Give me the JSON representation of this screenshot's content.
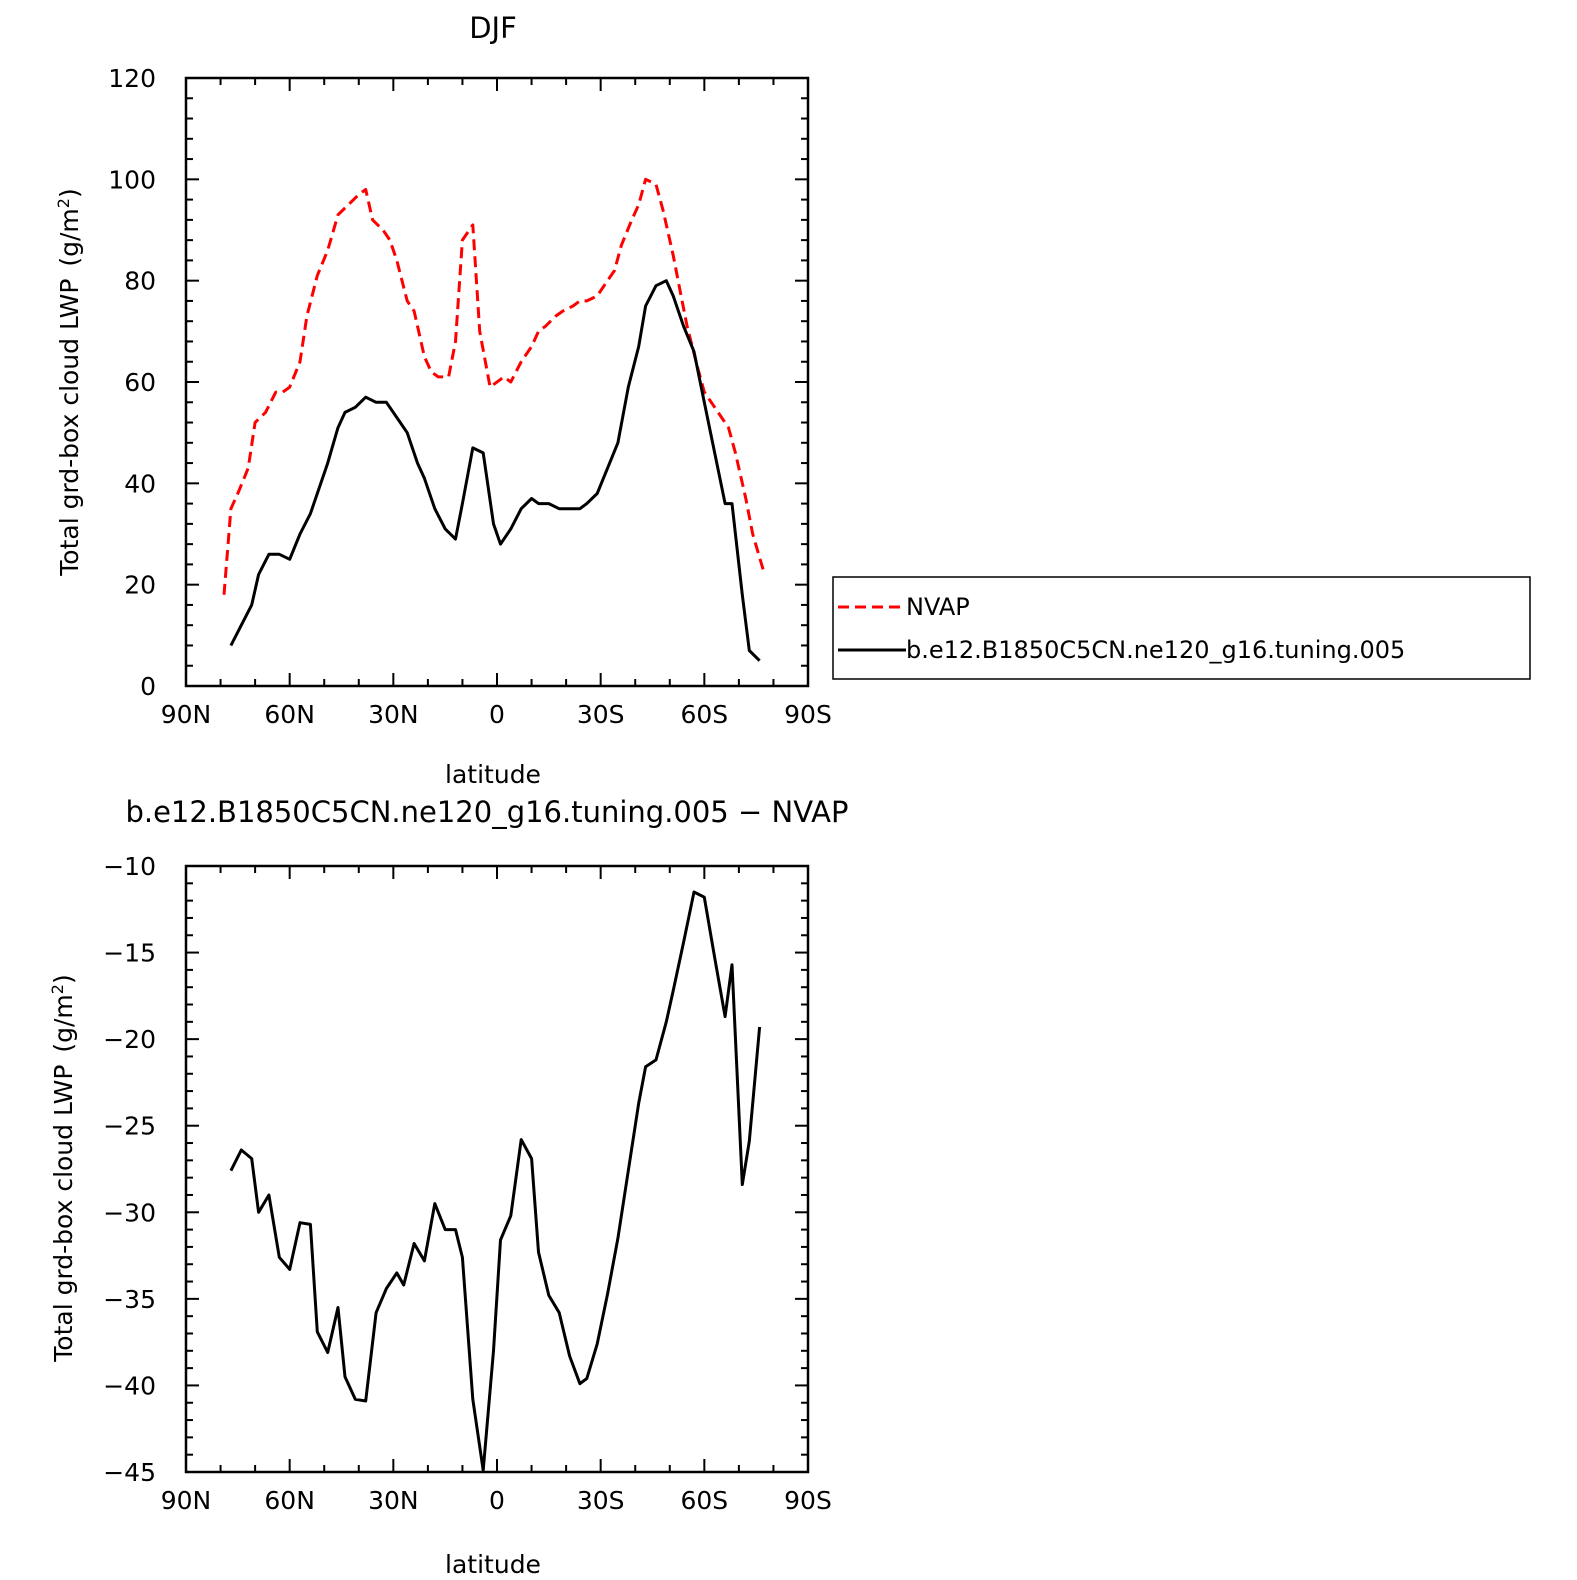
{
  "chart_data": [
    {
      "type": "line",
      "title": "DJF",
      "xlabel": "latitude",
      "ylabel": "Total grd-box cloud LWP",
      "ylabel_unit": "(g/m",
      "ylabel_unit_sup": "2",
      "ylabel_unit_close": ")",
      "xlim": [
        -90,
        90
      ],
      "ylim": [
        0,
        120
      ],
      "x_ticks": [
        -90,
        -60,
        -30,
        0,
        30,
        60,
        90
      ],
      "x_tick_labels": [
        "90N",
        "60N",
        "30N",
        "0",
        "30S",
        "60S",
        "90S"
      ],
      "y_ticks": [
        0,
        20,
        40,
        60,
        80,
        100,
        120
      ],
      "y_tick_labels": [
        "0",
        "20",
        "40",
        "60",
        "80",
        "100",
        "120"
      ],
      "grid": false,
      "legend_position": "right",
      "series": [
        {
          "name": "NVAP",
          "color": "#ff0000",
          "dash": "dashed",
          "x": [
            -79,
            -77,
            -75,
            -72,
            -70,
            -67,
            -64,
            -62,
            -60,
            -57,
            -55,
            -52,
            -49,
            -46,
            -43,
            -40,
            -38,
            -36,
            -33,
            -31,
            -29,
            -26,
            -24,
            -21,
            -19,
            -17,
            -14,
            -12,
            -10,
            -7,
            -5,
            -2,
            2,
            4,
            7,
            10,
            12,
            14,
            17,
            19,
            22,
            24,
            26,
            29,
            31,
            34,
            36,
            39,
            41,
            43,
            46,
            48,
            51,
            53,
            55,
            58,
            60,
            63,
            65,
            67,
            69,
            72,
            74,
            77
          ],
          "y": [
            18,
            35,
            38,
            43,
            52,
            54,
            58,
            58,
            59,
            64,
            73,
            81,
            86,
            93,
            95,
            97,
            98,
            92,
            90,
            88,
            84,
            76,
            74,
            65,
            62,
            61,
            61,
            68,
            88,
            91,
            70,
            59,
            61,
            60,
            64,
            67,
            70,
            71,
            73,
            74,
            75,
            76,
            76,
            77,
            79,
            82,
            87,
            92,
            95,
            100,
            99,
            94,
            85,
            78,
            71,
            63,
            58,
            55,
            53,
            51,
            46,
            37,
            30,
            23
          ]
        },
        {
          "name": "b.e12.B1850C5CN.ne120_g16.tuning.005",
          "color": "#000000",
          "dash": "solid",
          "x": [
            -77,
            -74,
            -71,
            -69,
            -66,
            -63,
            -60,
            -57,
            -54,
            -52,
            -49,
            -46,
            -44,
            -41,
            -38,
            -35,
            -32,
            -29,
            -26,
            -23,
            -21,
            -18,
            -15,
            -12,
            -10,
            -7,
            -4,
            -1,
            1,
            4,
            7,
            10,
            12,
            15,
            18,
            21,
            24,
            26,
            29,
            32,
            35,
            38,
            41,
            43,
            46,
            49,
            51,
            54,
            57,
            60,
            63,
            66,
            68,
            71,
            73,
            76
          ],
          "y": [
            8,
            12,
            16,
            22,
            26,
            26,
            25,
            30,
            34,
            38,
            44,
            51,
            54,
            55,
            57,
            56,
            56,
            53,
            50,
            44,
            41,
            35,
            31,
            29,
            36,
            47,
            46,
            32,
            28,
            31,
            35,
            37,
            36,
            36,
            35,
            35,
            35,
            36,
            38,
            43,
            48,
            59,
            67,
            75,
            79,
            80,
            77,
            71,
            66,
            56,
            46,
            36,
            36,
            18,
            7,
            5
          ]
        }
      ]
    },
    {
      "type": "line",
      "title": "b.e12.B1850C5CN.ne120_g16.tuning.005 − NVAP",
      "xlabel": "latitude",
      "ylabel": "Total grd-box cloud LWP",
      "ylabel_unit": "(g/m",
      "ylabel_unit_sup": "2",
      "ylabel_unit_close": ")",
      "xlim": [
        -90,
        90
      ],
      "ylim": [
        -45,
        -10
      ],
      "x_ticks": [
        -90,
        -60,
        -30,
        0,
        30,
        60,
        90
      ],
      "x_tick_labels": [
        "90N",
        "60N",
        "30N",
        "0",
        "30S",
        "60S",
        "90S"
      ],
      "y_ticks": [
        -45,
        -40,
        -35,
        -30,
        -25,
        -20,
        -15,
        -10
      ],
      "y_tick_labels": [
        "−45",
        "−40",
        "−35",
        "−30",
        "−25",
        "−20",
        "−15",
        "−10"
      ],
      "grid": false,
      "series": [
        {
          "color": "#000000",
          "dash": "solid",
          "x": [
            -77,
            -74,
            -71,
            -69,
            -66,
            -63,
            -60,
            -57,
            -54,
            -52,
            -49,
            -46,
            -44,
            -41,
            -38,
            -35,
            -32,
            -29,
            -27,
            -24,
            -21,
            -18,
            -15,
            -12,
            -10,
            -7,
            -4,
            -1,
            1,
            4,
            7,
            10,
            12,
            15,
            18,
            21,
            24,
            26,
            29,
            32,
            35,
            38,
            41,
            43,
            46,
            49,
            51,
            54,
            57,
            60,
            63,
            66,
            68,
            71,
            73,
            76
          ],
          "y": [
            -27.6,
            -26.4,
            -26.9,
            -30,
            -29,
            -32.6,
            -33.3,
            -30.6,
            -30.7,
            -36.9,
            -38.1,
            -35.5,
            -39.5,
            -40.8,
            -40.9,
            -35.8,
            -34.4,
            -33.5,
            -34.2,
            -31.8,
            -32.8,
            -29.5,
            -31,
            -31,
            -32.6,
            -40.8,
            -44.9,
            -38,
            -31.6,
            -30.2,
            -25.8,
            -26.9,
            -32.3,
            -34.8,
            -35.8,
            -38.3,
            -39.9,
            -39.6,
            -37.6,
            -34.7,
            -31.5,
            -27.6,
            -23.7,
            -21.6,
            -21.2,
            -19,
            -17.2,
            -14.4,
            -11.5,
            -11.8,
            -15.3,
            -18.7,
            -15.7,
            -28.4,
            -25.9,
            -19.3
          ]
        }
      ]
    }
  ]
}
